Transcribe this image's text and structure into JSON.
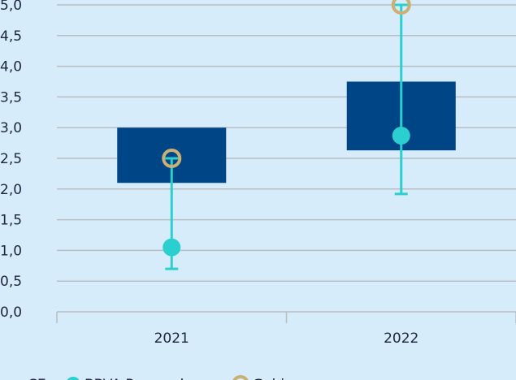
{
  "colors": {
    "background": "#d6ecfa",
    "grid": "#b9bcc2",
    "range_box": "#004585",
    "bbva_marker": "#2bcfcf",
    "gobierno_marker": "#c9b074",
    "text": "#1d2440"
  },
  "chart_data": {
    "type": "box",
    "categories": [
      "2021",
      "2022"
    ],
    "ylim": [
      0,
      5
    ],
    "yticks": [
      "0,0",
      "0,5",
      "1,0",
      "1,5",
      "2,0",
      "2,5",
      "3,0",
      "3,5",
      "4,0",
      "4,5",
      "5,0"
    ],
    "grid": true,
    "boxes": [
      {
        "category": "2021",
        "low": 2.1,
        "high": 3.0
      },
      {
        "category": "2022",
        "low": 2.63,
        "high": 3.75
      }
    ],
    "series": [
      {
        "name": "BBVA Research",
        "marker": "filled-circle",
        "points": [
          {
            "category": "2021",
            "value": 1.05,
            "whisker_low": 0.7,
            "whisker_high": 2.5
          },
          {
            "category": "2022",
            "value": 2.87,
            "whisker_low": 1.92,
            "whisker_high": 5.0
          }
        ]
      },
      {
        "name": "Gobierno",
        "marker": "ring",
        "points": [
          {
            "category": "2021",
            "value": 2.5
          },
          {
            "category": "2022",
            "value": 5.0
          }
        ]
      }
    ],
    "legend": {
      "position": "bottom-left",
      "entries": [
        "CE",
        "BBVA Research",
        "Gobierno"
      ]
    }
  }
}
